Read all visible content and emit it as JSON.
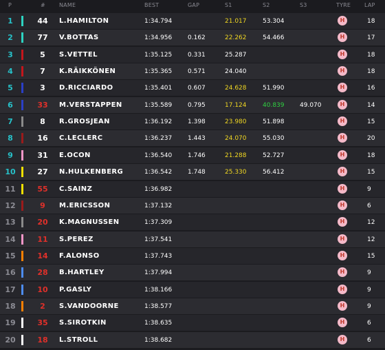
{
  "header": {
    "p": "P",
    "num": "#",
    "name": "NAME",
    "best": "BEST",
    "gap": "GAP",
    "s1": "S1",
    "s2": "S2",
    "s3": "S3",
    "tyre": "TYRE",
    "lap": "LAP"
  },
  "colors": {
    "pos_top": "#27c1c9",
    "pos_other": "#8c8c94",
    "num_white": "#ffffff",
    "num_red": "#e0302a",
    "sector_personal": "#f0d722",
    "sector_best": "#2fd141",
    "sector_normal": "#ffffff",
    "tyre_bg": "#f4b9c8",
    "tyre_text": "#c0392b"
  },
  "rows": [
    {
      "pos": "1",
      "num": "44",
      "name": "L.HAMILTON",
      "best": "1:34.794",
      "gap": "",
      "s1": "21.017",
      "s2": "53.304",
      "s3": "",
      "tyre": "H",
      "lap": "18",
      "team": "#2dd3c1",
      "num_color": "white",
      "s1c": "personal",
      "s2c": "normal",
      "s3c": "normal"
    },
    {
      "pos": "2",
      "num": "77",
      "name": "V.BOTTAS",
      "best": "1:34.956",
      "gap": "0.162",
      "s1": "22.262",
      "s2": "54.466",
      "s3": "",
      "tyre": "H",
      "lap": "17",
      "team": "#2dd3c1",
      "num_color": "white",
      "s1c": "personal",
      "s2c": "normal",
      "s3c": "normal"
    },
    {
      "pos": "3",
      "num": "5",
      "name": "S.VETTEL",
      "best": "1:35.125",
      "gap": "0.331",
      "s1": "25.287",
      "s2": "",
      "s3": "",
      "tyre": "H",
      "lap": "18",
      "team": "#c4161c",
      "num_color": "white",
      "s1c": "normal",
      "s2c": "normal",
      "s3c": "normal"
    },
    {
      "pos": "4",
      "num": "7",
      "name": "K.RÄIKKÖNEN",
      "best": "1:35.365",
      "gap": "0.571",
      "s1": "24.040",
      "s2": "",
      "s3": "",
      "tyre": "H",
      "lap": "18",
      "team": "#c4161c",
      "num_color": "white",
      "s1c": "normal",
      "s2c": "normal",
      "s3c": "normal"
    },
    {
      "pos": "5",
      "num": "3",
      "name": "D.RICCIARDO",
      "best": "1:35.401",
      "gap": "0.607",
      "s1": "24.628",
      "s2": "51.990",
      "s3": "",
      "tyre": "H",
      "lap": "16",
      "team": "#2b3fc6",
      "num_color": "white",
      "s1c": "personal",
      "s2c": "normal",
      "s3c": "normal"
    },
    {
      "pos": "6",
      "num": "33",
      "name": "M.VERSTAPPEN",
      "best": "1:35.589",
      "gap": "0.795",
      "s1": "17.124",
      "s2": "40.839",
      "s3": "49.070",
      "tyre": "H",
      "lap": "14",
      "team": "#2b3fc6",
      "num_color": "red",
      "s1c": "personal",
      "s2c": "best",
      "s3c": "normal"
    },
    {
      "pos": "7",
      "num": "8",
      "name": "R.GROSJEAN",
      "best": "1:36.192",
      "gap": "1.398",
      "s1": "23.980",
      "s2": "51.898",
      "s3": "",
      "tyre": "H",
      "lap": "15",
      "team": "#8a8a8a",
      "num_color": "white",
      "s1c": "personal",
      "s2c": "normal",
      "s3c": "normal"
    },
    {
      "pos": "8",
      "num": "16",
      "name": "C.LECLERC",
      "best": "1:36.237",
      "gap": "1.443",
      "s1": "24.070",
      "s2": "55.030",
      "s3": "",
      "tyre": "H",
      "lap": "20",
      "team": "#9b1b1b",
      "num_color": "white",
      "s1c": "personal",
      "s2c": "normal",
      "s3c": "normal"
    },
    {
      "pos": "9",
      "num": "31",
      "name": "E.OCON",
      "best": "1:36.540",
      "gap": "1.746",
      "s1": "21.288",
      "s2": "52.727",
      "s3": "",
      "tyre": "H",
      "lap": "18",
      "team": "#f596c8",
      "num_color": "white",
      "s1c": "personal",
      "s2c": "normal",
      "s3c": "normal"
    },
    {
      "pos": "10",
      "num": "27",
      "name": "N.HULKENBERG",
      "best": "1:36.542",
      "gap": "1.748",
      "s1": "25.330",
      "s2": "56.412",
      "s3": "",
      "tyre": "H",
      "lap": "15",
      "team": "#f0e000",
      "num_color": "white",
      "s1c": "personal",
      "s2c": "normal",
      "s3c": "normal"
    },
    {
      "pos": "11",
      "num": "55",
      "name": "C.SAINZ",
      "best": "1:36.982",
      "gap": "",
      "s1": "",
      "s2": "",
      "s3": "",
      "tyre": "H",
      "lap": "9",
      "team": "#f0e000",
      "num_color": "red",
      "s1c": "normal",
      "s2c": "normal",
      "s3c": "normal"
    },
    {
      "pos": "12",
      "num": "9",
      "name": "M.ERICSSON",
      "best": "1:37.132",
      "gap": "",
      "s1": "",
      "s2": "",
      "s3": "",
      "tyre": "H",
      "lap": "6",
      "team": "#9b1b1b",
      "num_color": "red",
      "s1c": "normal",
      "s2c": "normal",
      "s3c": "normal"
    },
    {
      "pos": "13",
      "num": "20",
      "name": "K.MAGNUSSEN",
      "best": "1:37.309",
      "gap": "",
      "s1": "",
      "s2": "",
      "s3": "",
      "tyre": "H",
      "lap": "12",
      "team": "#8a8a8a",
      "num_color": "red",
      "s1c": "normal",
      "s2c": "normal",
      "s3c": "normal"
    },
    {
      "pos": "14",
      "num": "11",
      "name": "S.PEREZ",
      "best": "1:37.541",
      "gap": "",
      "s1": "",
      "s2": "",
      "s3": "",
      "tyre": "H",
      "lap": "12",
      "team": "#f596c8",
      "num_color": "red",
      "s1c": "normal",
      "s2c": "normal",
      "s3c": "normal"
    },
    {
      "pos": "15",
      "num": "14",
      "name": "F.ALONSO",
      "best": "1:37.743",
      "gap": "",
      "s1": "",
      "s2": "",
      "s3": "",
      "tyre": "H",
      "lap": "15",
      "team": "#ff8000",
      "num_color": "red",
      "s1c": "normal",
      "s2c": "normal",
      "s3c": "normal"
    },
    {
      "pos": "16",
      "num": "28",
      "name": "B.HARTLEY",
      "best": "1:37.994",
      "gap": "",
      "s1": "",
      "s2": "",
      "s3": "",
      "tyre": "H",
      "lap": "9",
      "team": "#4d8cf0",
      "num_color": "red",
      "s1c": "normal",
      "s2c": "normal",
      "s3c": "normal"
    },
    {
      "pos": "17",
      "num": "10",
      "name": "P.GASLY",
      "best": "1:38.166",
      "gap": "",
      "s1": "",
      "s2": "",
      "s3": "",
      "tyre": "H",
      "lap": "9",
      "team": "#4d8cf0",
      "num_color": "red",
      "s1c": "normal",
      "s2c": "normal",
      "s3c": "normal"
    },
    {
      "pos": "18",
      "num": "2",
      "name": "S.VANDOORNE",
      "best": "1:38.577",
      "gap": "",
      "s1": "",
      "s2": "",
      "s3": "",
      "tyre": "H",
      "lap": "9",
      "team": "#ff8000",
      "num_color": "red",
      "s1c": "normal",
      "s2c": "normal",
      "s3c": "normal"
    },
    {
      "pos": "19",
      "num": "35",
      "name": "S.SIROTKIN",
      "best": "1:38.635",
      "gap": "",
      "s1": "",
      "s2": "",
      "s3": "",
      "tyre": "H",
      "lap": "6",
      "team": "#ffffff",
      "num_color": "red",
      "s1c": "normal",
      "s2c": "normal",
      "s3c": "normal"
    },
    {
      "pos": "20",
      "num": "18",
      "name": "L.STROLL",
      "best": "1:38.682",
      "gap": "",
      "s1": "",
      "s2": "",
      "s3": "",
      "tyre": "H",
      "lap": "6",
      "team": "#ffffff",
      "num_color": "red",
      "s1c": "normal",
      "s2c": "normal",
      "s3c": "normal"
    }
  ]
}
